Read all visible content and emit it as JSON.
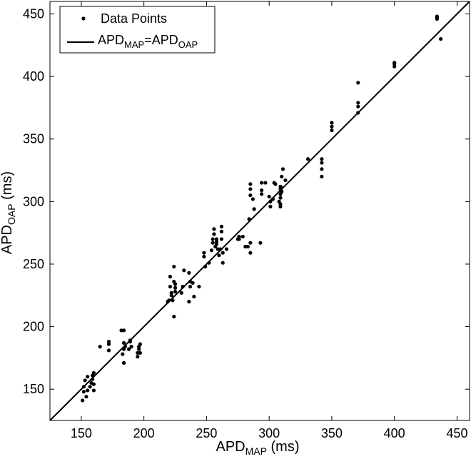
{
  "chart_data": {
    "type": "scatter",
    "xlabel": {
      "main": "APD",
      "sub": "MAP",
      "unit": " (ms)"
    },
    "ylabel": {
      "main": "APD",
      "sub": "OAP",
      "unit": " (ms)"
    },
    "xlim": [
      125,
      460
    ],
    "ylim": [
      125,
      460
    ],
    "xticks": [
      150,
      200,
      250,
      300,
      350,
      400,
      450
    ],
    "yticks": [
      150,
      200,
      250,
      300,
      350,
      400,
      450
    ],
    "grid": false,
    "legend_position": "top-left",
    "legend": [
      {
        "type": "marker",
        "label": "Data Points"
      },
      {
        "type": "line",
        "parts": [
          {
            "t": "APD",
            "sub": "MAP"
          },
          {
            "t": "=APD",
            "sub": "OAP"
          }
        ]
      }
    ],
    "line": {
      "from": [
        125,
        125
      ],
      "to": [
        460,
        460
      ]
    },
    "series": [
      {
        "marker": "dot",
        "color": "#000000",
        "points": [
          [
            151,
            141
          ],
          [
            152,
            148
          ],
          [
            152,
            152
          ],
          [
            153,
            157
          ],
          [
            154,
            144
          ],
          [
            155,
            149
          ],
          [
            155,
            160
          ],
          [
            157,
            152
          ],
          [
            158,
            155
          ],
          [
            159,
            158
          ],
          [
            159,
            161
          ],
          [
            160,
            163
          ],
          [
            160,
            154
          ],
          [
            160,
            149
          ],
          [
            165,
            184
          ],
          [
            172,
            181
          ],
          [
            172,
            186
          ],
          [
            172,
            188
          ],
          [
            182,
            197
          ],
          [
            184,
            197
          ],
          [
            183,
            178
          ],
          [
            184,
            182
          ],
          [
            185,
            184
          ],
          [
            184,
            187
          ],
          [
            184,
            171
          ],
          [
            188,
            182
          ],
          [
            189,
            188
          ],
          [
            189,
            189
          ],
          [
            190,
            184
          ],
          [
            195,
            176
          ],
          [
            195,
            179
          ],
          [
            196,
            184
          ],
          [
            196,
            182
          ],
          [
            197,
            179
          ],
          [
            197,
            186
          ],
          [
            219,
            220
          ],
          [
            220,
            221
          ],
          [
            221,
            232
          ],
          [
            221,
            240
          ],
          [
            222,
            225
          ],
          [
            222,
            227
          ],
          [
            223,
            221
          ],
          [
            224,
            236
          ],
          [
            224,
            248
          ],
          [
            224,
            208
          ],
          [
            225,
            228
          ],
          [
            225,
            234
          ],
          [
            225,
            231
          ],
          [
            230,
            227
          ],
          [
            231,
            232
          ],
          [
            232,
            245
          ],
          [
            236,
            243
          ],
          [
            236,
            220
          ],
          [
            237,
            232
          ],
          [
            237,
            236
          ],
          [
            239,
            235
          ],
          [
            240,
            224
          ],
          [
            244,
            232
          ],
          [
            248,
            259
          ],
          [
            248,
            256
          ],
          [
            249,
            248
          ],
          [
            252,
            251
          ],
          [
            254,
            261
          ],
          [
            255,
            267
          ],
          [
            255,
            270
          ],
          [
            256,
            274
          ],
          [
            256,
            278
          ],
          [
            257,
            264
          ],
          [
            258,
            266
          ],
          [
            258,
            268
          ],
          [
            258,
            270
          ],
          [
            259,
            262
          ],
          [
            260,
            257
          ],
          [
            261,
            262
          ],
          [
            262,
            270
          ],
          [
            262,
            276
          ],
          [
            262,
            280
          ],
          [
            263,
            259
          ],
          [
            263,
            251
          ],
          [
            266,
            262
          ],
          [
            275,
            270
          ],
          [
            276,
            272
          ],
          [
            276,
            270
          ],
          [
            279,
            272
          ],
          [
            281,
            264
          ],
          [
            283,
            264
          ],
          [
            284,
            286
          ],
          [
            285,
            305
          ],
          [
            285,
            310
          ],
          [
            285,
            314
          ],
          [
            285,
            267
          ],
          [
            285,
            259
          ],
          [
            287,
            302
          ],
          [
            288,
            294
          ],
          [
            293,
            267
          ],
          [
            294,
            306
          ],
          [
            294,
            309
          ],
          [
            294,
            315
          ],
          [
            297,
            315
          ],
          [
            300,
            304
          ],
          [
            301,
            300
          ],
          [
            301,
            296
          ],
          [
            303,
            302
          ],
          [
            304,
            315
          ],
          [
            305,
            314
          ],
          [
            308,
            300
          ],
          [
            309,
            303
          ],
          [
            309,
            306
          ],
          [
            309,
            310
          ],
          [
            309,
            296
          ],
          [
            309,
            298
          ],
          [
            309,
            312
          ],
          [
            310,
            308
          ],
          [
            310,
            311
          ],
          [
            310,
            320
          ],
          [
            311,
            326
          ],
          [
            313,
            317
          ],
          [
            331,
            334
          ],
          [
            342,
            326
          ],
          [
            342,
            331
          ],
          [
            342,
            334
          ],
          [
            342,
            320
          ],
          [
            350,
            357
          ],
          [
            350,
            360
          ],
          [
            350,
            363
          ],
          [
            371,
            371
          ],
          [
            371,
            376
          ],
          [
            371,
            379
          ],
          [
            371,
            395
          ],
          [
            400,
            408
          ],
          [
            400,
            410
          ],
          [
            400,
            411
          ],
          [
            434,
            446
          ],
          [
            434,
            447
          ],
          [
            434,
            448
          ],
          [
            437,
            430
          ]
        ]
      }
    ]
  }
}
